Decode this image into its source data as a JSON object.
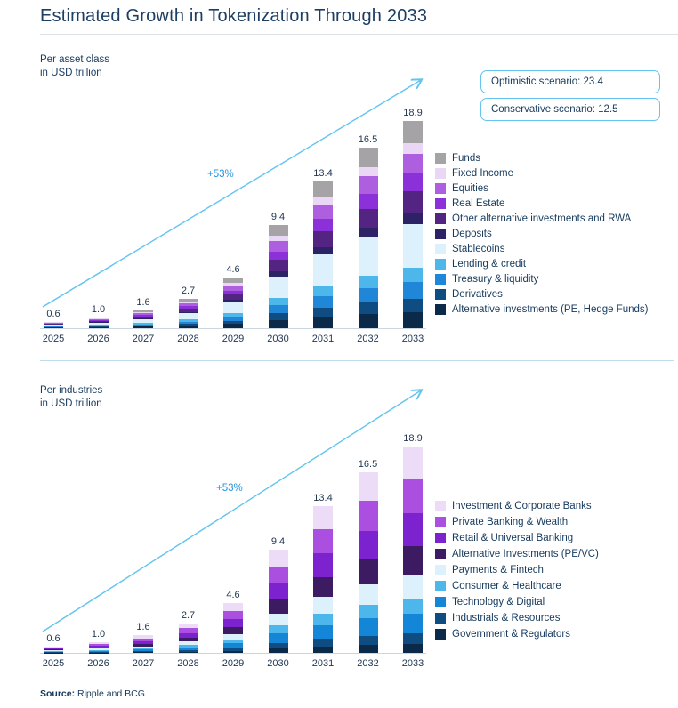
{
  "page": {
    "title": "Estimated Growth in Tokenization Through 2033",
    "source_label": "Source:",
    "source_text": " Ripple and BCG"
  },
  "scenario_box": {
    "optimistic": "Optimistic scenario: 23.4",
    "conservative": "Conservative scenario: 12.5"
  },
  "colors": {
    "accent_arrow": "#62c4ee",
    "growth_label": "#2492dc",
    "text": "#163a5e",
    "scenario_border": "#64c3ef",
    "axis_line": "#ccd6de"
  },
  "icons": {
    "growth_arrow": "diagonal-arrow-up-right"
  },
  "chart_data": [
    {
      "type": "bar",
      "stacked": true,
      "title": "Per asset class",
      "subtitle": "in USD trillion",
      "growth_label": "+53%",
      "legend_position": "right",
      "ylim": [
        0,
        19
      ],
      "categories": [
        "2025",
        "2026",
        "2027",
        "2028",
        "2029",
        "2030",
        "2031",
        "2032",
        "2033"
      ],
      "totals": [
        0.6,
        1.0,
        1.6,
        2.7,
        4.6,
        9.4,
        13.4,
        16.5,
        18.9
      ],
      "series": [
        {
          "name": "Funds",
          "color": "#a5a3a6",
          "values": [
            0.06,
            0.11,
            0.17,
            0.29,
            0.49,
            0.99,
            1.42,
            1.75,
            2.0
          ]
        },
        {
          "name": "Fixed Income",
          "color": "#e9d7f5",
          "values": [
            0.03,
            0.05,
            0.08,
            0.14,
            0.24,
            0.5,
            0.71,
            0.87,
            1.0
          ]
        },
        {
          "name": "Equities",
          "color": "#ae5fe0",
          "values": [
            0.06,
            0.1,
            0.15,
            0.26,
            0.44,
            0.9,
            1.28,
            1.57,
            1.8
          ]
        },
        {
          "name": "Real Estate",
          "color": "#8c30d9",
          "values": [
            0.05,
            0.08,
            0.14,
            0.23,
            0.39,
            0.8,
            1.13,
            1.4,
            1.6
          ]
        },
        {
          "name": "Other alternative investments and RWA",
          "color": "#542483",
          "values": [
            0.06,
            0.11,
            0.17,
            0.29,
            0.49,
            0.99,
            1.42,
            1.75,
            2.0
          ]
        },
        {
          "name": "Deposits",
          "color": "#2e2266",
          "values": [
            0.03,
            0.05,
            0.08,
            0.14,
            0.24,
            0.5,
            0.71,
            0.87,
            1.0
          ]
        },
        {
          "name": "Stablecoins",
          "color": "#ddf1fc",
          "values": [
            0.13,
            0.21,
            0.34,
            0.57,
            0.97,
            1.99,
            2.84,
            3.49,
            4.0
          ]
        },
        {
          "name": "Lending & credit",
          "color": "#4db6ea",
          "values": [
            0.04,
            0.07,
            0.11,
            0.19,
            0.32,
            0.65,
            0.92,
            1.13,
            1.3
          ]
        },
        {
          "name": "Treasury & liquidity",
          "color": "#1f86d8",
          "values": [
            0.05,
            0.08,
            0.13,
            0.21,
            0.37,
            0.75,
            1.06,
            1.31,
            1.5
          ]
        },
        {
          "name": "Derivatives",
          "color": "#0f4c81",
          "values": [
            0.04,
            0.06,
            0.1,
            0.17,
            0.29,
            0.6,
            0.85,
            1.05,
            1.2
          ]
        },
        {
          "name": "Alternative investments (PE, Hedge Funds)",
          "color": "#0b2a4a",
          "values": [
            0.05,
            0.08,
            0.13,
            0.21,
            0.37,
            0.75,
            1.06,
            1.31,
            1.5
          ]
        }
      ]
    },
    {
      "type": "bar",
      "stacked": true,
      "title": "Per industries",
      "subtitle": "in USD trillion",
      "growth_label": "+53%",
      "legend_position": "right",
      "ylim": [
        0,
        19
      ],
      "categories": [
        "2025",
        "2026",
        "2027",
        "2028",
        "2029",
        "2030",
        "2031",
        "2032",
        "2033"
      ],
      "totals": [
        0.6,
        1.0,
        1.6,
        2.7,
        4.6,
        9.4,
        13.4,
        16.5,
        18.9
      ],
      "series": [
        {
          "name": "Investment & Corporate Banks",
          "color": "#ecdcf7",
          "values": [
            0.1,
            0.16,
            0.25,
            0.43,
            0.73,
            1.49,
            2.13,
            2.62,
            3.0
          ]
        },
        {
          "name": "Private Banking & Wealth",
          "color": "#ab4fe0",
          "values": [
            0.1,
            0.16,
            0.26,
            0.44,
            0.75,
            1.54,
            2.2,
            2.71,
            3.1
          ]
        },
        {
          "name": "Retail & Universal Banking",
          "color": "#7d22cf",
          "values": [
            0.1,
            0.16,
            0.25,
            0.43,
            0.73,
            1.49,
            2.13,
            2.62,
            3.0
          ]
        },
        {
          "name": "Alternative Investments (PE/VC)",
          "color": "#3d1b63",
          "values": [
            0.08,
            0.14,
            0.22,
            0.37,
            0.63,
            1.29,
            1.84,
            2.27,
            2.6
          ]
        },
        {
          "name": "Payments & Fintech",
          "color": "#ddf1fc",
          "values": [
            0.07,
            0.12,
            0.19,
            0.31,
            0.54,
            1.09,
            1.56,
            1.92,
            2.2
          ]
        },
        {
          "name": "Consumer & Healthcare",
          "color": "#4db6ea",
          "values": [
            0.04,
            0.07,
            0.12,
            0.2,
            0.34,
            0.7,
            0.99,
            1.22,
            1.4
          ]
        },
        {
          "name": "Technology & Digital",
          "color": "#1486d8",
          "values": [
            0.06,
            0.1,
            0.15,
            0.26,
            0.44,
            0.9,
            1.28,
            1.57,
            1.8
          ]
        },
        {
          "name": "Industrials & Resources",
          "color": "#0f4c81",
          "values": [
            0.03,
            0.05,
            0.08,
            0.14,
            0.24,
            0.5,
            0.71,
            0.87,
            1.0
          ]
        },
        {
          "name": "Government & Regulators",
          "color": "#0b2a4a",
          "values": [
            0.03,
            0.04,
            0.07,
            0.11,
            0.19,
            0.4,
            0.57,
            0.7,
            0.8
          ]
        }
      ]
    }
  ]
}
